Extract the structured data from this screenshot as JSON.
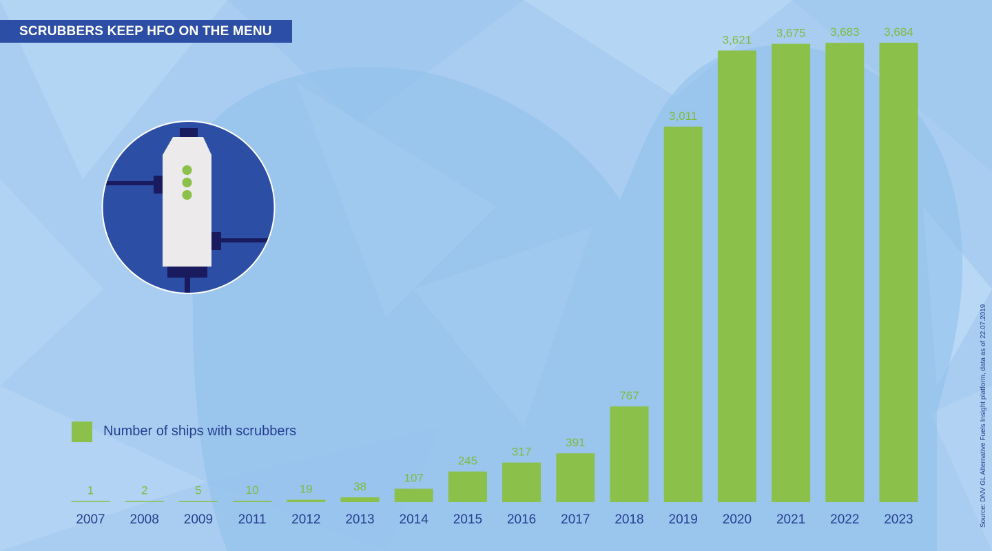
{
  "title": "SCRUBBERS KEEP HFO ON THE MENU",
  "source_note": "Source: DNV GL Alternative Fuels Insight platform, data as of 22.07.2019",
  "colors": {
    "bar": "#8bc04a",
    "value_label": "#7fbb3f",
    "text": "#243f8f",
    "banner": "#2c4ea5",
    "background": "#a9cdf0",
    "icon_circle": "#2c4ea5",
    "icon_body": "#eceaea",
    "icon_dark": "#1a1a5e",
    "icon_dot": "#8bc04a"
  },
  "icon": "scrubber-icon",
  "chart_data": {
    "type": "bar",
    "title": "SCRUBBERS KEEP HFO ON THE MENU",
    "xlabel": "",
    "ylabel": "",
    "categories": [
      "2007",
      "2008",
      "2009",
      "2011",
      "2012",
      "2013",
      "2014",
      "2015",
      "2016",
      "2017",
      "2018",
      "2019",
      "2020",
      "2021",
      "2022",
      "2023"
    ],
    "series": [
      {
        "name": "Number of ships with scrubbers",
        "values": [
          1,
          2,
          5,
          10,
          19,
          38,
          107,
          245,
          317,
          391,
          767,
          3011,
          3621,
          3675,
          3683,
          3684
        ],
        "labels": [
          "1",
          "2",
          "5",
          "10",
          "19",
          "38",
          "107",
          "245",
          "317",
          "391",
          "767",
          "3,011",
          "3,621",
          "3,675",
          "3,683",
          "3,684"
        ]
      }
    ],
    "ylim": [
      0,
      3684
    ],
    "grid": false,
    "legend": "bottom-left"
  }
}
